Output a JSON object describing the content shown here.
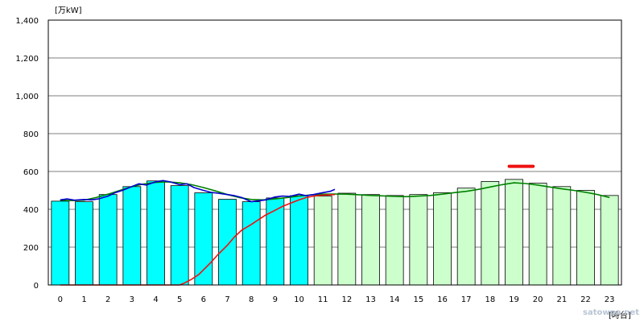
{
  "chart_data": {
    "type": "bar",
    "y_unit_label": "[万kW]",
    "x_unit_label": "[時台]",
    "watermark": "satowpa.net",
    "ylim": [
      0,
      1400
    ],
    "y_ticks": [
      "0",
      "200",
      "400",
      "600",
      "800",
      "1,000",
      "1,200",
      "1,400"
    ],
    "y_tick_values": [
      0,
      200,
      400,
      600,
      800,
      1000,
      1200,
      1400
    ],
    "categories": [
      "0",
      "1",
      "2",
      "3",
      "4",
      "5",
      "6",
      "7",
      "8",
      "9",
      "10",
      "11",
      "12",
      "13",
      "14",
      "15",
      "16",
      "17",
      "18",
      "19",
      "20",
      "21",
      "22",
      "23"
    ],
    "grid": true,
    "colors": {
      "actual_bar": "#00ffff",
      "forecast_bar": "#ccffcc",
      "bar_border": "#000000",
      "actual_line": "#0000cc",
      "forecast_line": "#008000",
      "red_line": "#ee1111",
      "peak_marker": "#ee1111",
      "grid": "#000000"
    },
    "series": [
      {
        "kind": "bar",
        "segments": [
          {
            "from": 0,
            "to": 10,
            "color_key": "actual_bar"
          },
          {
            "from": 11,
            "to": 23,
            "color_key": "forecast_bar"
          }
        ],
        "values": [
          443,
          440,
          478,
          520,
          550,
          525,
          487,
          453,
          440,
          460,
          472,
          470,
          485,
          478,
          473,
          478,
          488,
          512,
          547,
          558,
          538,
          520,
          500,
          473
        ]
      },
      {
        "kind": "line",
        "color_key": "forecast_line",
        "x": [
          0,
          0.5,
          1,
          1.5,
          2,
          2.5,
          3,
          3.5,
          4,
          4.5,
          5,
          5.5,
          6,
          6.5,
          7,
          7.5,
          8,
          8.5,
          9,
          9.5,
          10,
          10.5,
          11,
          11.5,
          12,
          12.5,
          13,
          13.5,
          14,
          14.5,
          15,
          15.5,
          16,
          16.5,
          17,
          17.5,
          18,
          18.5,
          19,
          19.5,
          20,
          20.5,
          21,
          21.5,
          22,
          22.5,
          23
        ],
        "values": [
          448,
          446,
          448,
          462,
          480,
          500,
          520,
          534,
          542,
          545,
          540,
          530,
          515,
          497,
          478,
          462,
          452,
          450,
          455,
          462,
          470,
          476,
          480,
          481,
          480,
          477,
          473,
          471,
          468,
          467,
          470,
          473,
          480,
          488,
          495,
          505,
          518,
          530,
          540,
          536,
          528,
          518,
          508,
          500,
          490,
          478,
          462
        ]
      },
      {
        "kind": "line",
        "color_key": "actual_line",
        "x": [
          0,
          0.3,
          0.6,
          1,
          1.3,
          1.6,
          2,
          2.3,
          2.6,
          3,
          3.3,
          3.6,
          4,
          4.3,
          4.6,
          5,
          5.3,
          5.6,
          6,
          6.3,
          6.6,
          7,
          7.3,
          7.6,
          8,
          8.3,
          8.6,
          9,
          9.3,
          9.6,
          10,
          10.3,
          10.6,
          11,
          11.3,
          11.5
        ],
        "values": [
          450,
          455,
          448,
          452,
          450,
          455,
          470,
          488,
          500,
          520,
          535,
          528,
          545,
          552,
          545,
          530,
          535,
          515,
          500,
          490,
          485,
          478,
          472,
          462,
          440,
          445,
          450,
          465,
          470,
          468,
          480,
          472,
          478,
          488,
          495,
          505
        ]
      },
      {
        "kind": "line",
        "color_key": "red_line",
        "x": [
          0,
          1,
          2,
          3,
          4,
          5,
          5.2,
          5.5,
          5.8,
          6,
          6.3,
          6.6,
          7,
          7.3,
          7.6,
          8,
          8.3,
          8.6,
          9,
          9.3,
          9.6,
          10,
          10.3,
          10.6,
          11,
          11.5
        ],
        "values": [
          0,
          0,
          0,
          0,
          0,
          0,
          10,
          30,
          55,
          80,
          118,
          160,
          210,
          255,
          290,
          320,
          345,
          370,
          395,
          415,
          430,
          450,
          462,
          470,
          475,
          478
        ]
      }
    ],
    "peak_marker": {
      "x_from": 18.8,
      "x_to": 19.8,
      "value": 627
    }
  }
}
